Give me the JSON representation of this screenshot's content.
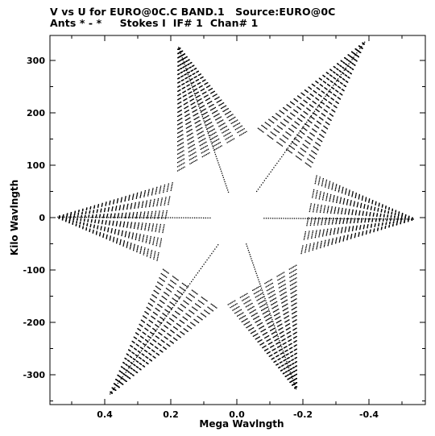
{
  "header": {
    "title_line1": "V vs U for EURO@0C.C BAND.1   Source:EURO@0C",
    "title_line2": "Ants * - *     Stokes I  IF# 1  Chan# 1"
  },
  "chart_data": {
    "type": "scatter",
    "title": "V vs U for EURO@0C.C BAND.1   Source:EURO@0C",
    "subtitle": "Ants * - *     Stokes I  IF# 1  Chan# 1",
    "xlabel": "Mega Wavlngth",
    "ylabel": "Kilo Wavlngth",
    "x_reversed": true,
    "xlim": [
      0.56,
      -0.56
    ],
    "ylim": [
      -360,
      360
    ],
    "x_ticks": [
      0.4,
      0.2,
      0.0,
      -0.2,
      -0.4
    ],
    "x_tick_labels": [
      "0.4",
      "0.2",
      "0.0",
      "-0.2",
      "-0.4"
    ],
    "y_ticks": [
      300,
      200,
      100,
      0,
      -100,
      -200,
      -300
    ],
    "y_tick_labels": [
      "300",
      "200",
      "100",
      "0",
      "-100",
      "-200",
      "-300"
    ],
    "grid": false,
    "marker_color": "#000000",
    "arm_tips": [
      {
        "u": 0.55,
        "v": 2
      },
      {
        "u": -0.54,
        "v": -2
      },
      {
        "u": 0.39,
        "v": -340
      },
      {
        "u": -0.39,
        "v": 340
      },
      {
        "u": 0.18,
        "v": 330
      },
      {
        "u": -0.18,
        "v": -330
      }
    ],
    "tracks_per_arm": 30
  }
}
